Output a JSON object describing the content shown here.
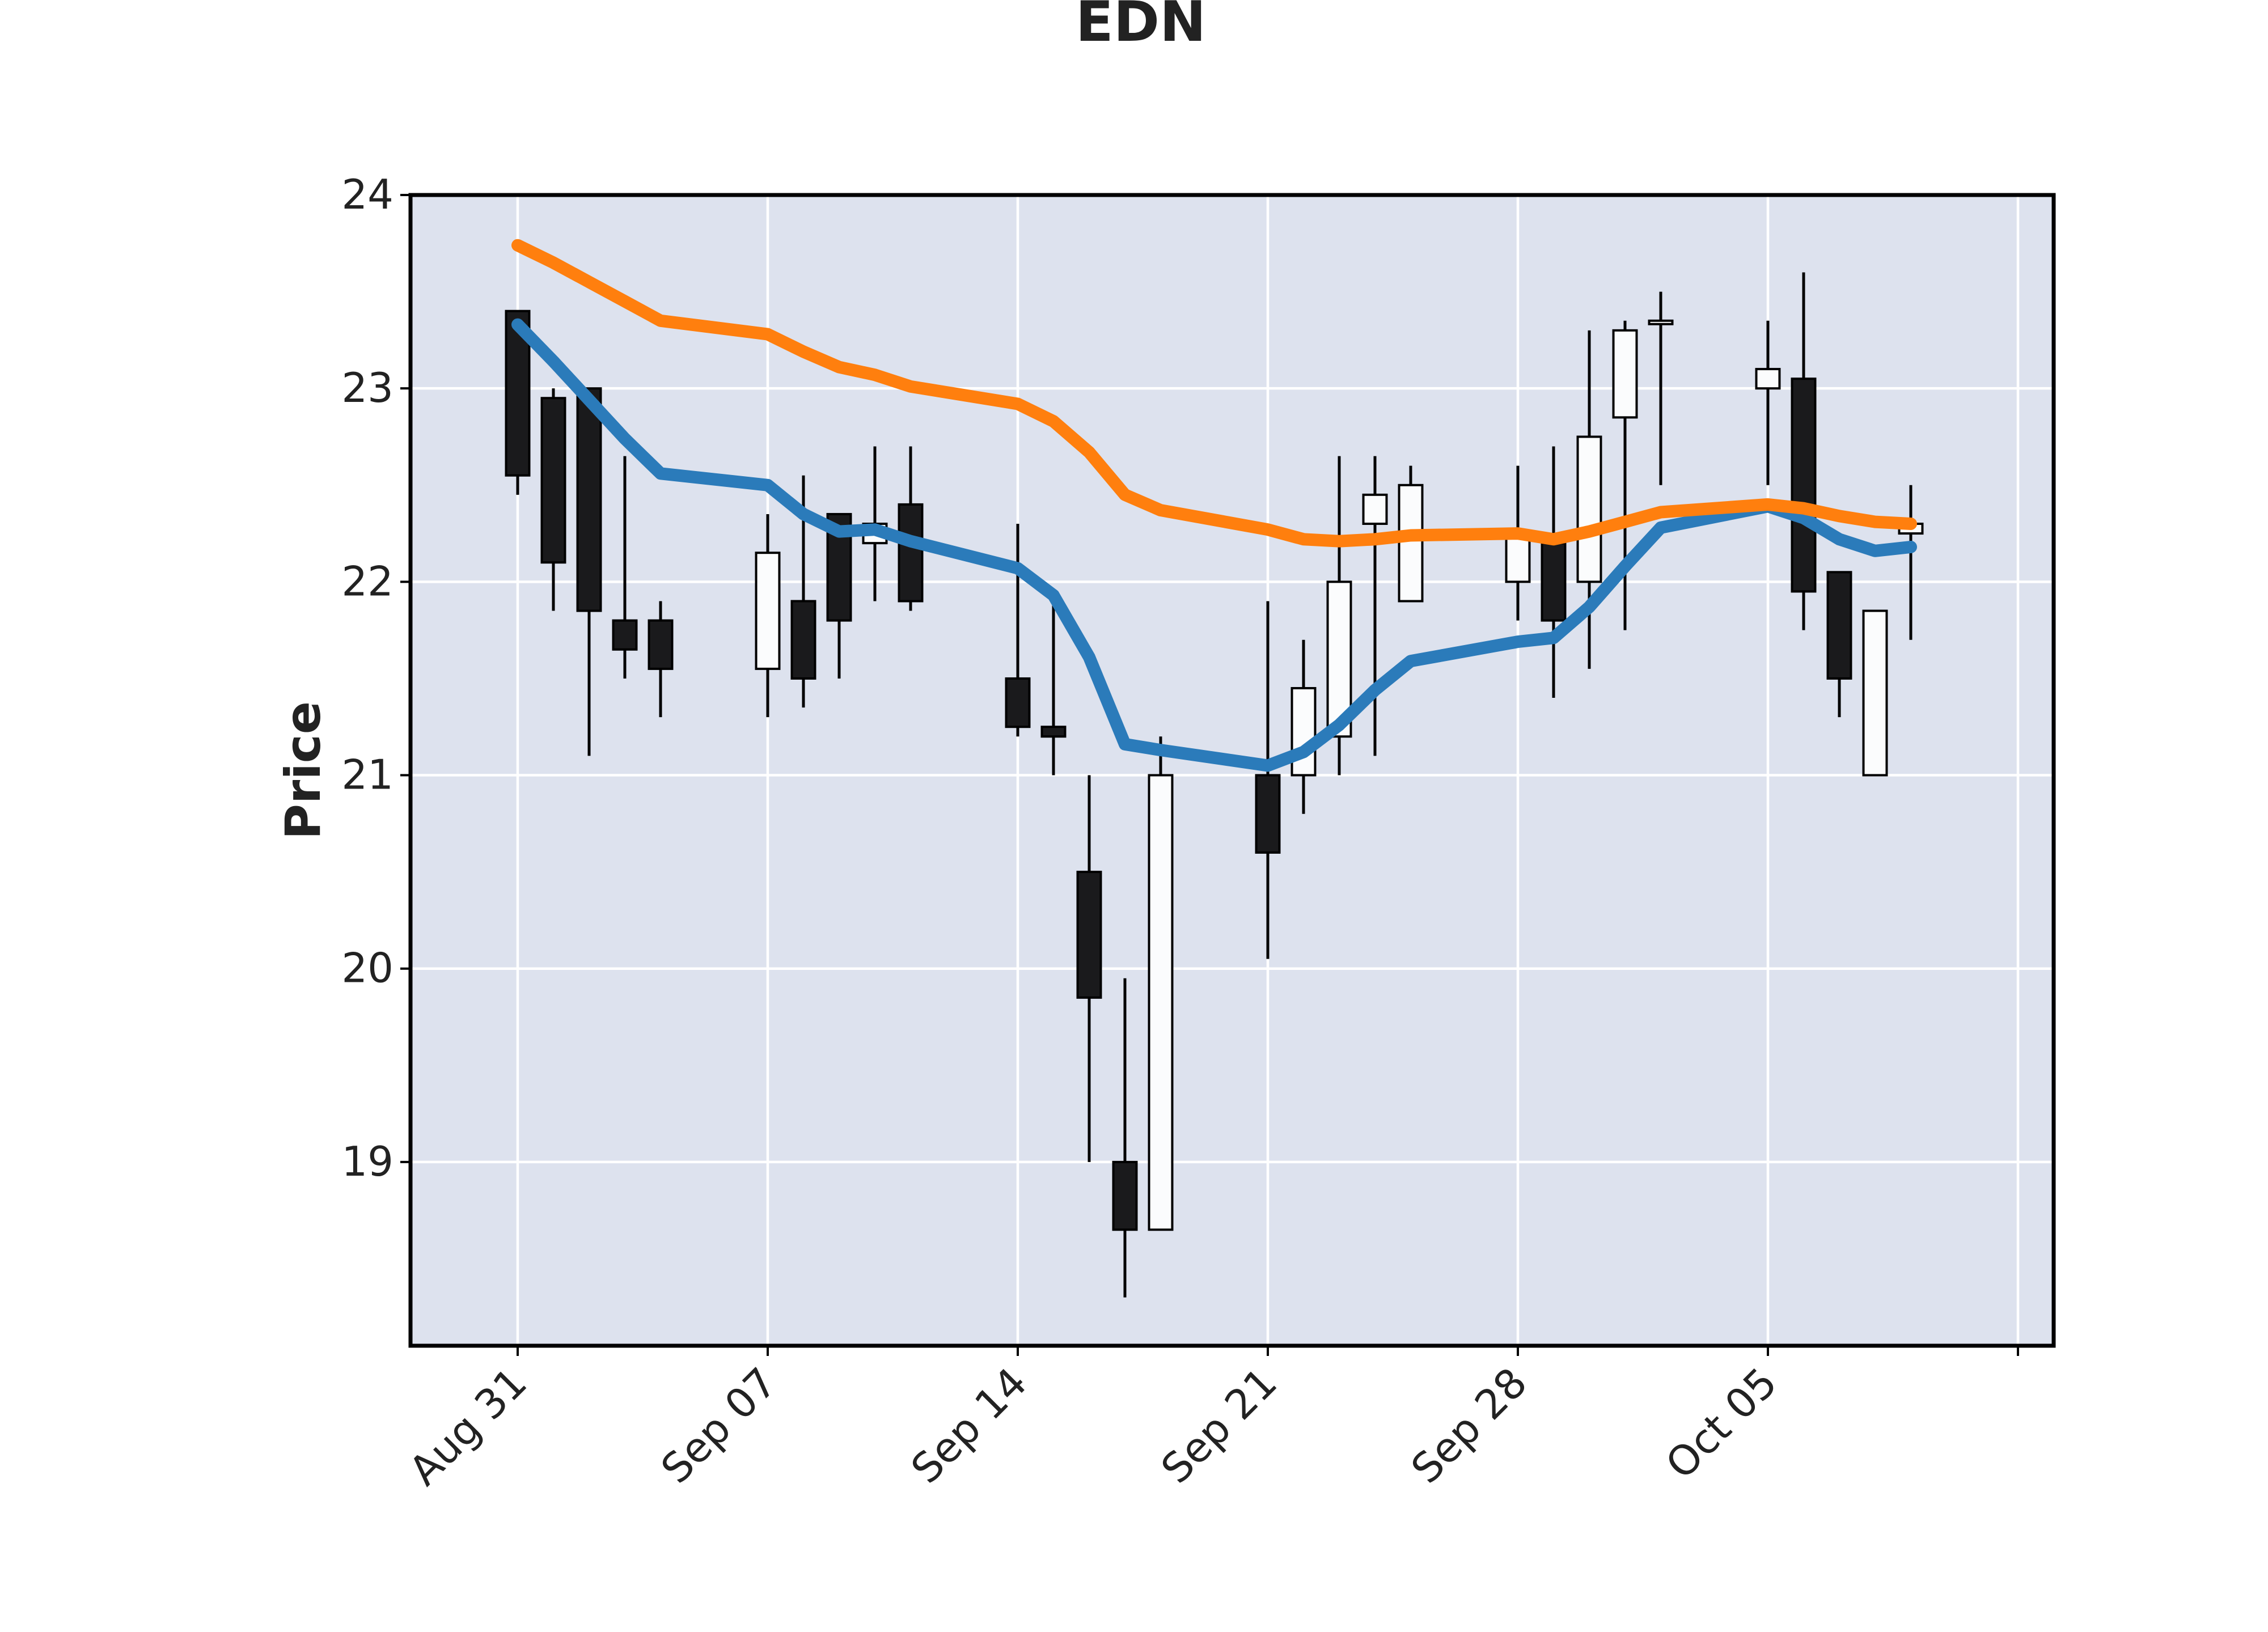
{
  "chart_data": {
    "type": "candlestick",
    "title": "EDN",
    "xlabel": "",
    "ylabel": "Price",
    "ylim": [
      18.05,
      24.0
    ],
    "yticks": [
      19,
      20,
      21,
      22,
      23,
      24
    ],
    "ytick_labels": [
      "19",
      "20",
      "21",
      "22",
      "23",
      "24"
    ],
    "xticks": [
      {
        "label": "Aug 31",
        "date": "2020-08-31"
      },
      {
        "label": "Sep 07",
        "date": "2020-09-07"
      },
      {
        "label": "Sep 14",
        "date": "2020-09-14"
      },
      {
        "label": "Sep 21",
        "date": "2020-09-21"
      },
      {
        "label": "Sep 28",
        "date": "2020-09-28"
      },
      {
        "label": "Oct 05",
        "date": "2020-10-05"
      },
      {
        "label": "",
        "date": "2020-10-12"
      }
    ],
    "x_start": "2020-08-28",
    "x_end": "2020-10-13",
    "grid": true,
    "background_color": "#dde2ee",
    "up_color": "#fbfcfd",
    "down_color": "#1a1a1c",
    "ma_colors": [
      "#2b7bba",
      "#ff7f0e"
    ],
    "candles": [
      {
        "date": "2020-08-31",
        "open": 23.4,
        "high": 23.4,
        "low": 22.45,
        "close": 22.55
      },
      {
        "date": "2020-09-01",
        "open": 22.95,
        "high": 23.0,
        "low": 21.85,
        "close": 22.1
      },
      {
        "date": "2020-09-02",
        "open": 23.0,
        "high": 23.0,
        "low": 21.1,
        "close": 21.85
      },
      {
        "date": "2020-09-03",
        "open": 21.8,
        "high": 22.65,
        "low": 21.5,
        "close": 21.65
      },
      {
        "date": "2020-09-04",
        "open": 21.8,
        "high": 21.9,
        "low": 21.3,
        "close": 21.55
      },
      {
        "date": "2020-09-07",
        "open": 21.55,
        "high": 22.35,
        "low": 21.3,
        "close": 22.15
      },
      {
        "date": "2020-09-08",
        "open": 21.9,
        "high": 22.55,
        "low": 21.35,
        "close": 21.5
      },
      {
        "date": "2020-09-09",
        "open": 22.35,
        "high": 22.35,
        "low": 21.5,
        "close": 21.8
      },
      {
        "date": "2020-09-10",
        "open": 22.2,
        "high": 22.7,
        "low": 21.9,
        "close": 22.3
      },
      {
        "date": "2020-09-11",
        "open": 22.4,
        "high": 22.7,
        "low": 21.85,
        "close": 21.9
      },
      {
        "date": "2020-09-14",
        "open": 21.5,
        "high": 22.3,
        "low": 21.2,
        "close": 21.25
      },
      {
        "date": "2020-09-15",
        "open": 21.25,
        "high": 21.9,
        "low": 21.0,
        "close": 21.2
      },
      {
        "date": "2020-09-16",
        "open": 20.5,
        "high": 21.0,
        "low": 19.0,
        "close": 19.85
      },
      {
        "date": "2020-09-17",
        "open": 19.0,
        "high": 19.95,
        "low": 18.3,
        "close": 18.65
      },
      {
        "date": "2020-09-18",
        "open": 18.65,
        "high": 21.2,
        "low": 18.65,
        "close": 21.0
      },
      {
        "date": "2020-09-21",
        "open": 21.0,
        "high": 21.9,
        "low": 20.05,
        "close": 20.6
      },
      {
        "date": "2020-09-22",
        "open": 21.0,
        "high": 21.7,
        "low": 20.8,
        "close": 21.45
      },
      {
        "date": "2020-09-23",
        "open": 21.2,
        "high": 22.65,
        "low": 21.0,
        "close": 22.0
      },
      {
        "date": "2020-09-24",
        "open": 22.3,
        "high": 22.65,
        "low": 21.1,
        "close": 22.45
      },
      {
        "date": "2020-09-25",
        "open": 21.9,
        "high": 22.6,
        "low": 21.9,
        "close": 22.5
      },
      {
        "date": "2020-09-28",
        "open": 22.0,
        "high": 22.6,
        "low": 21.8,
        "close": 22.25
      },
      {
        "date": "2020-09-29",
        "open": 22.2,
        "high": 22.7,
        "low": 21.4,
        "close": 21.8
      },
      {
        "date": "2020-09-30",
        "open": 22.0,
        "high": 23.3,
        "low": 21.55,
        "close": 22.75
      },
      {
        "date": "2020-10-01",
        "open": 22.85,
        "high": 23.35,
        "low": 21.75,
        "close": 23.3
      },
      {
        "date": "2020-10-02",
        "open": 23.35,
        "high": 23.5,
        "low": 22.5,
        "close": 23.35
      },
      {
        "date": "2020-10-05",
        "open": 23.0,
        "high": 23.35,
        "low": 22.5,
        "close": 23.1
      },
      {
        "date": "2020-10-06",
        "open": 23.05,
        "high": 23.6,
        "low": 21.75,
        "close": 21.95
      },
      {
        "date": "2020-10-07",
        "open": 22.05,
        "high": 22.05,
        "low": 21.3,
        "close": 21.5
      },
      {
        "date": "2020-10-08",
        "open": 21.0,
        "high": 21.85,
        "low": 21.0,
        "close": 21.85
      },
      {
        "date": "2020-10-09",
        "open": 22.25,
        "high": 22.5,
        "low": 21.7,
        "close": 22.3
      }
    ],
    "series": [
      {
        "values": [
          23.33,
          23.14,
          22.94,
          22.74,
          22.56,
          22.5,
          22.35,
          22.26,
          22.27,
          22.21,
          22.07,
          21.93,
          21.61,
          21.16,
          21.13,
          21.05,
          21.12,
          21.26,
          21.44,
          21.59,
          21.69,
          21.71,
          21.87,
          22.08,
          22.28,
          22.39,
          22.33,
          22.22,
          22.16,
          22.18
        ]
      },
      {
        "values": [
          23.74,
          23.65,
          23.55,
          23.45,
          23.35,
          23.28,
          23.19,
          23.11,
          23.07,
          23.01,
          22.92,
          22.83,
          22.67,
          22.45,
          22.37,
          22.27,
          22.22,
          22.21,
          22.22,
          22.24,
          22.25,
          22.22,
          22.26,
          22.31,
          22.36,
          22.4,
          22.38,
          22.34,
          22.31,
          22.3
        ]
      }
    ]
  }
}
